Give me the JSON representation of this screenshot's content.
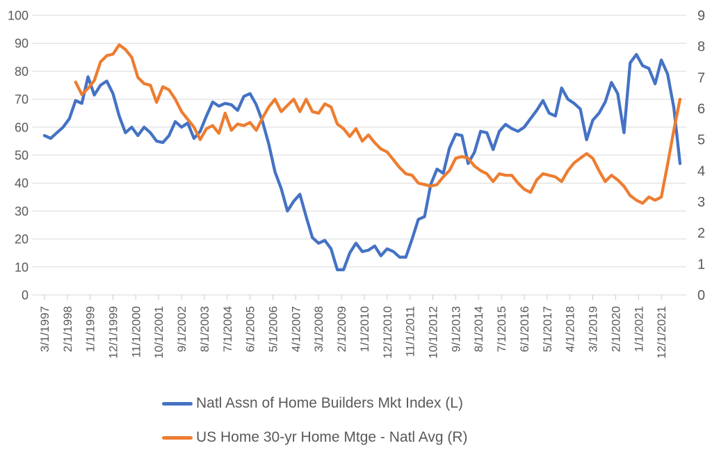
{
  "chart_data": {
    "type": "line",
    "title": "",
    "x_axis": {
      "unit": "months since 3/1/1997",
      "tick_months": [
        0,
        11,
        22,
        33,
        44,
        55,
        66,
        77,
        88,
        99,
        110,
        121,
        132,
        143,
        154,
        165,
        176,
        187,
        198,
        209,
        220,
        231,
        242,
        253,
        264,
        275,
        286,
        297
      ],
      "tick_labels": [
        "3/1/1997",
        "2/1/1998",
        "1/1/1999",
        "12/1/1999",
        "11/1/2000",
        "10/1/2001",
        "9/1/2002",
        "8/1/2003",
        "7/1/2004",
        "6/1/2005",
        "5/1/2006",
        "4/1/2007",
        "3/1/2008",
        "2/1/2009",
        "1/1/2010",
        "12/1/2010",
        "11/1/2011",
        "10/1/2012",
        "9/1/2013",
        "8/1/2014",
        "7/1/2015",
        "6/1/2016",
        "5/1/2017",
        "4/1/2018",
        "3/1/2019",
        "2/1/2020",
        "1/1/2021",
        "12/1/2021"
      ]
    },
    "y_axis_left": {
      "min": 0,
      "max": 100,
      "step": 10,
      "labels": [
        "0",
        "10",
        "20",
        "30",
        "40",
        "50",
        "60",
        "70",
        "80",
        "90",
        "100"
      ]
    },
    "y_axis_right": {
      "min": 0,
      "max": 9,
      "step": 1,
      "labels": [
        "0",
        "1",
        "2",
        "3",
        "4",
        "5",
        "6",
        "7",
        "8",
        "9"
      ]
    },
    "grid": true,
    "legend_position": "bottom",
    "series": [
      {
        "name": "Natl Assn of Home Builders Mkt Index (L)",
        "axis": "left",
        "color": "#4472C4",
        "points": [
          [
            0,
            57
          ],
          [
            3,
            56
          ],
          [
            6,
            58
          ],
          [
            9,
            60
          ],
          [
            12,
            63
          ],
          [
            15,
            69.5
          ],
          [
            18,
            68.5
          ],
          [
            21,
            78
          ],
          [
            24,
            71.5
          ],
          [
            27,
            75
          ],
          [
            30,
            76.5
          ],
          [
            33,
            72
          ],
          [
            36,
            64
          ],
          [
            39,
            58
          ],
          [
            42,
            60
          ],
          [
            45,
            57
          ],
          [
            48,
            60
          ],
          [
            51,
            58
          ],
          [
            54,
            55
          ],
          [
            57,
            54.5
          ],
          [
            60,
            57
          ],
          [
            63,
            62
          ],
          [
            66,
            60
          ],
          [
            69,
            61.5
          ],
          [
            72,
            56
          ],
          [
            75,
            58.5
          ],
          [
            78,
            64
          ],
          [
            81,
            69
          ],
          [
            84,
            67.5
          ],
          [
            87,
            68.5
          ],
          [
            90,
            68
          ],
          [
            93,
            66
          ],
          [
            96,
            71
          ],
          [
            99,
            72
          ],
          [
            102,
            68
          ],
          [
            105,
            62
          ],
          [
            108,
            54
          ],
          [
            111,
            44
          ],
          [
            114,
            38
          ],
          [
            117,
            30
          ],
          [
            120,
            33.5
          ],
          [
            123,
            36
          ],
          [
            126,
            28
          ],
          [
            129,
            20.5
          ],
          [
            132,
            18.5
          ],
          [
            135,
            19.5
          ],
          [
            138,
            16.5
          ],
          [
            141,
            9
          ],
          [
            144,
            9
          ],
          [
            147,
            15
          ],
          [
            150,
            18.5
          ],
          [
            153,
            15.5
          ],
          [
            156,
            16
          ],
          [
            159,
            17.5
          ],
          [
            162,
            14
          ],
          [
            165,
            16.5
          ],
          [
            168,
            15.5
          ],
          [
            171,
            13.5
          ],
          [
            174,
            13.5
          ],
          [
            177,
            20
          ],
          [
            180,
            27
          ],
          [
            183,
            28
          ],
          [
            186,
            39.5
          ],
          [
            189,
            45
          ],
          [
            192,
            43.5
          ],
          [
            195,
            52.5
          ],
          [
            198,
            57.5
          ],
          [
            201,
            57
          ],
          [
            204,
            47
          ],
          [
            207,
            51
          ],
          [
            210,
            58.5
          ],
          [
            213,
            58
          ],
          [
            216,
            52
          ],
          [
            219,
            58.5
          ],
          [
            222,
            61
          ],
          [
            225,
            59.5
          ],
          [
            228,
            58.5
          ],
          [
            231,
            60
          ],
          [
            234,
            63
          ],
          [
            237,
            66
          ],
          [
            240,
            69.5
          ],
          [
            243,
            65
          ],
          [
            246,
            64
          ],
          [
            249,
            74
          ],
          [
            252,
            70
          ],
          [
            255,
            68.5
          ],
          [
            258,
            66.5
          ],
          [
            261,
            55.5
          ],
          [
            264,
            62.5
          ],
          [
            267,
            65
          ],
          [
            270,
            69
          ],
          [
            273,
            76
          ],
          [
            276,
            72
          ],
          [
            279,
            58
          ],
          [
            282,
            83
          ],
          [
            285,
            86
          ],
          [
            288,
            82
          ],
          [
            291,
            81
          ],
          [
            294,
            75.5
          ],
          [
            297,
            84
          ],
          [
            300,
            79
          ],
          [
            303,
            67
          ],
          [
            306,
            47
          ]
        ]
      },
      {
        "name": "US Home 30-yr Home Mtge - Natl Avg (R)",
        "axis": "right",
        "color": "#ED7D31",
        "points": [
          [
            15,
            6.85
          ],
          [
            18,
            6.45
          ],
          [
            21,
            6.65
          ],
          [
            24,
            6.9
          ],
          [
            27,
            7.5
          ],
          [
            30,
            7.7
          ],
          [
            33,
            7.75
          ],
          [
            36,
            8.05
          ],
          [
            39,
            7.9
          ],
          [
            42,
            7.65
          ],
          [
            45,
            7.0
          ],
          [
            48,
            6.8
          ],
          [
            51,
            6.75
          ],
          [
            54,
            6.2
          ],
          [
            57,
            6.7
          ],
          [
            60,
            6.6
          ],
          [
            63,
            6.3
          ],
          [
            66,
            5.9
          ],
          [
            69,
            5.65
          ],
          [
            72,
            5.4
          ],
          [
            75,
            5.0
          ],
          [
            78,
            5.35
          ],
          [
            81,
            5.45
          ],
          [
            84,
            5.2
          ],
          [
            87,
            5.85
          ],
          [
            90,
            5.3
          ],
          [
            93,
            5.5
          ],
          [
            96,
            5.45
          ],
          [
            99,
            5.55
          ],
          [
            102,
            5.3
          ],
          [
            105,
            5.7
          ],
          [
            108,
            6.05
          ],
          [
            111,
            6.3
          ],
          [
            114,
            5.9
          ],
          [
            117,
            6.1
          ],
          [
            120,
            6.3
          ],
          [
            123,
            5.9
          ],
          [
            126,
            6.3
          ],
          [
            129,
            5.9
          ],
          [
            132,
            5.85
          ],
          [
            135,
            6.15
          ],
          [
            138,
            6.05
          ],
          [
            141,
            5.5
          ],
          [
            144,
            5.35
          ],
          [
            147,
            5.1
          ],
          [
            150,
            5.35
          ],
          [
            153,
            4.95
          ],
          [
            156,
            5.15
          ],
          [
            159,
            4.9
          ],
          [
            162,
            4.7
          ],
          [
            165,
            4.6
          ],
          [
            168,
            4.35
          ],
          [
            171,
            4.1
          ],
          [
            174,
            3.9
          ],
          [
            177,
            3.85
          ],
          [
            180,
            3.6
          ],
          [
            183,
            3.55
          ],
          [
            186,
            3.5
          ],
          [
            189,
            3.55
          ],
          [
            192,
            3.8
          ],
          [
            195,
            4.0
          ],
          [
            198,
            4.4
          ],
          [
            201,
            4.45
          ],
          [
            204,
            4.4
          ],
          [
            207,
            4.15
          ],
          [
            210,
            4.0
          ],
          [
            213,
            3.9
          ],
          [
            216,
            3.65
          ],
          [
            219,
            3.9
          ],
          [
            222,
            3.85
          ],
          [
            225,
            3.85
          ],
          [
            228,
            3.6
          ],
          [
            231,
            3.4
          ],
          [
            234,
            3.3
          ],
          [
            237,
            3.7
          ],
          [
            240,
            3.9
          ],
          [
            243,
            3.85
          ],
          [
            246,
            3.8
          ],
          [
            249,
            3.65
          ],
          [
            252,
            4.0
          ],
          [
            255,
            4.25
          ],
          [
            258,
            4.4
          ],
          [
            261,
            4.55
          ],
          [
            264,
            4.4
          ],
          [
            267,
            4.0
          ],
          [
            270,
            3.65
          ],
          [
            273,
            3.85
          ],
          [
            276,
            3.7
          ],
          [
            279,
            3.5
          ],
          [
            282,
            3.2
          ],
          [
            285,
            3.05
          ],
          [
            288,
            2.95
          ],
          [
            291,
            3.15
          ],
          [
            294,
            3.05
          ],
          [
            297,
            3.15
          ],
          [
            300,
            4.2
          ],
          [
            303,
            5.3
          ],
          [
            306,
            6.3
          ]
        ]
      }
    ]
  },
  "legend": {
    "items": [
      {
        "label": "Natl Assn of Home Builders Mkt Index (L)",
        "color": "#4472C4"
      },
      {
        "label": "US Home 30-yr Home Mtge - Natl Avg (R)",
        "color": "#ED7D31"
      }
    ]
  },
  "colors": {
    "background": "#FFFFFF",
    "grid": "#D9D9D9",
    "tick": "#C9C9C9",
    "axis_text": "#595959",
    "legend_text": "#595959"
  }
}
